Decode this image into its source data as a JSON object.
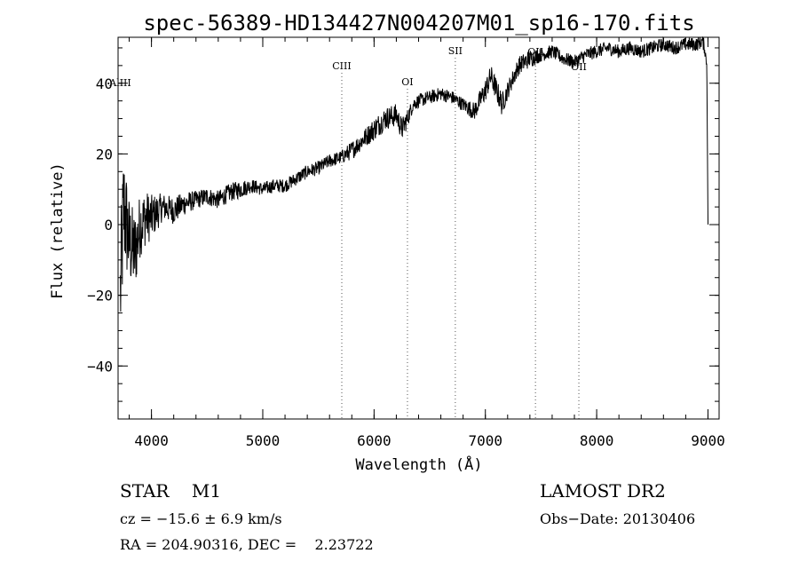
{
  "chart_data": {
    "type": "line",
    "title": "spec-56389-HD134427N004207M01_sp16-170.fits",
    "xlabel": "Wavelength (Å)",
    "ylabel": "Flux (relative)",
    "xlim": [
      3700,
      9100
    ],
    "ylim": [
      -55,
      53
    ],
    "x_ticks": [
      {
        "value": 4000,
        "label": "4000"
      },
      {
        "value": 5000,
        "label": "5000"
      },
      {
        "value": 6000,
        "label": "6000"
      },
      {
        "value": 7000,
        "label": "7000"
      },
      {
        "value": 8000,
        "label": "8000"
      },
      {
        "value": 9000,
        "label": "9000"
      }
    ],
    "y_ticks": [
      {
        "value": -40,
        "label": "−40"
      },
      {
        "value": -20,
        "label": "−20"
      },
      {
        "value": 0,
        "label": "0"
      },
      {
        "value": 20,
        "label": "20"
      },
      {
        "value": 40,
        "label": "40"
      }
    ],
    "x_minor_step": 200,
    "y_minor_step": 5,
    "grid": false,
    "legend": "none",
    "line_color": "#000000",
    "series": [
      {
        "x": [
          3720,
          3750,
          3800,
          3850,
          3900,
          3950,
          4000,
          4100,
          4200,
          4300,
          4400,
          4500,
          4600,
          4700,
          4800,
          4900,
          5000,
          5100,
          5200,
          5300,
          5400,
          5500,
          5600,
          5700,
          5800,
          5900,
          6000,
          6100,
          6200,
          6250,
          6300,
          6350,
          6400,
          6500,
          6600,
          6700,
          6800,
          6900,
          7000,
          7050,
          7100,
          7150,
          7200,
          7300,
          7400,
          7500,
          7600,
          7700,
          7800,
          7900,
          8000,
          8100,
          8200,
          8300,
          8400,
          8500,
          8600,
          8700,
          8800,
          8900,
          8950,
          8970,
          8990,
          9000
        ],
        "y": [
          -20,
          5,
          -5,
          -8,
          0,
          2,
          2,
          5,
          4,
          6,
          7,
          8,
          7,
          9,
          10,
          11,
          10,
          11,
          11,
          13,
          15,
          16,
          18,
          19,
          21,
          24,
          27,
          30,
          31,
          27,
          30,
          34,
          35,
          36,
          37,
          36,
          34,
          32,
          38,
          42,
          38,
          34,
          38,
          45,
          47,
          48,
          49,
          47,
          46,
          48,
          49,
          50,
          49,
          50,
          49,
          50,
          51,
          50,
          51,
          51,
          52,
          50,
          45,
          0
        ],
        "noise": [
          14,
          14,
          10,
          9,
          7,
          6,
          5,
          3,
          3,
          2.5,
          2,
          2,
          2,
          2,
          2,
          1.5,
          1.5,
          1.5,
          1.5,
          1.5,
          1.5,
          1.5,
          1.5,
          1.5,
          2,
          2,
          2.5,
          2.5,
          2.5,
          2.5,
          2,
          1.5,
          1.5,
          1.5,
          1.5,
          1.5,
          1.5,
          2,
          2.5,
          2.5,
          2.5,
          2.5,
          2,
          2,
          2,
          1.5,
          1.5,
          1.5,
          1.5,
          1.5,
          1.5,
          1.5,
          1.5,
          1.5,
          1.5,
          1.5,
          1.5,
          1.5,
          1.5,
          1.5,
          1.5,
          1.5,
          1,
          0
        ]
      }
    ],
    "line_markers": [
      {
        "label": "AlIII",
        "wavelength": 3720
      },
      {
        "label": "CIII",
        "wavelength": 5710
      },
      {
        "label": "OI",
        "wavelength": 6300
      },
      {
        "label": "SII",
        "wavelength": 6730
      },
      {
        "label": "OII",
        "wavelength": 7450
      },
      {
        "label": "OII",
        "wavelength": 7840
      }
    ]
  },
  "footer": {
    "object_class": "STAR    M1",
    "survey": "LAMOST DR2",
    "cz": "cz = −15.6 ± 6.9 km/s",
    "obs_date": "Obs−Date: 20130406",
    "coords": "RA = 204.90316, DEC =    2.23722"
  }
}
